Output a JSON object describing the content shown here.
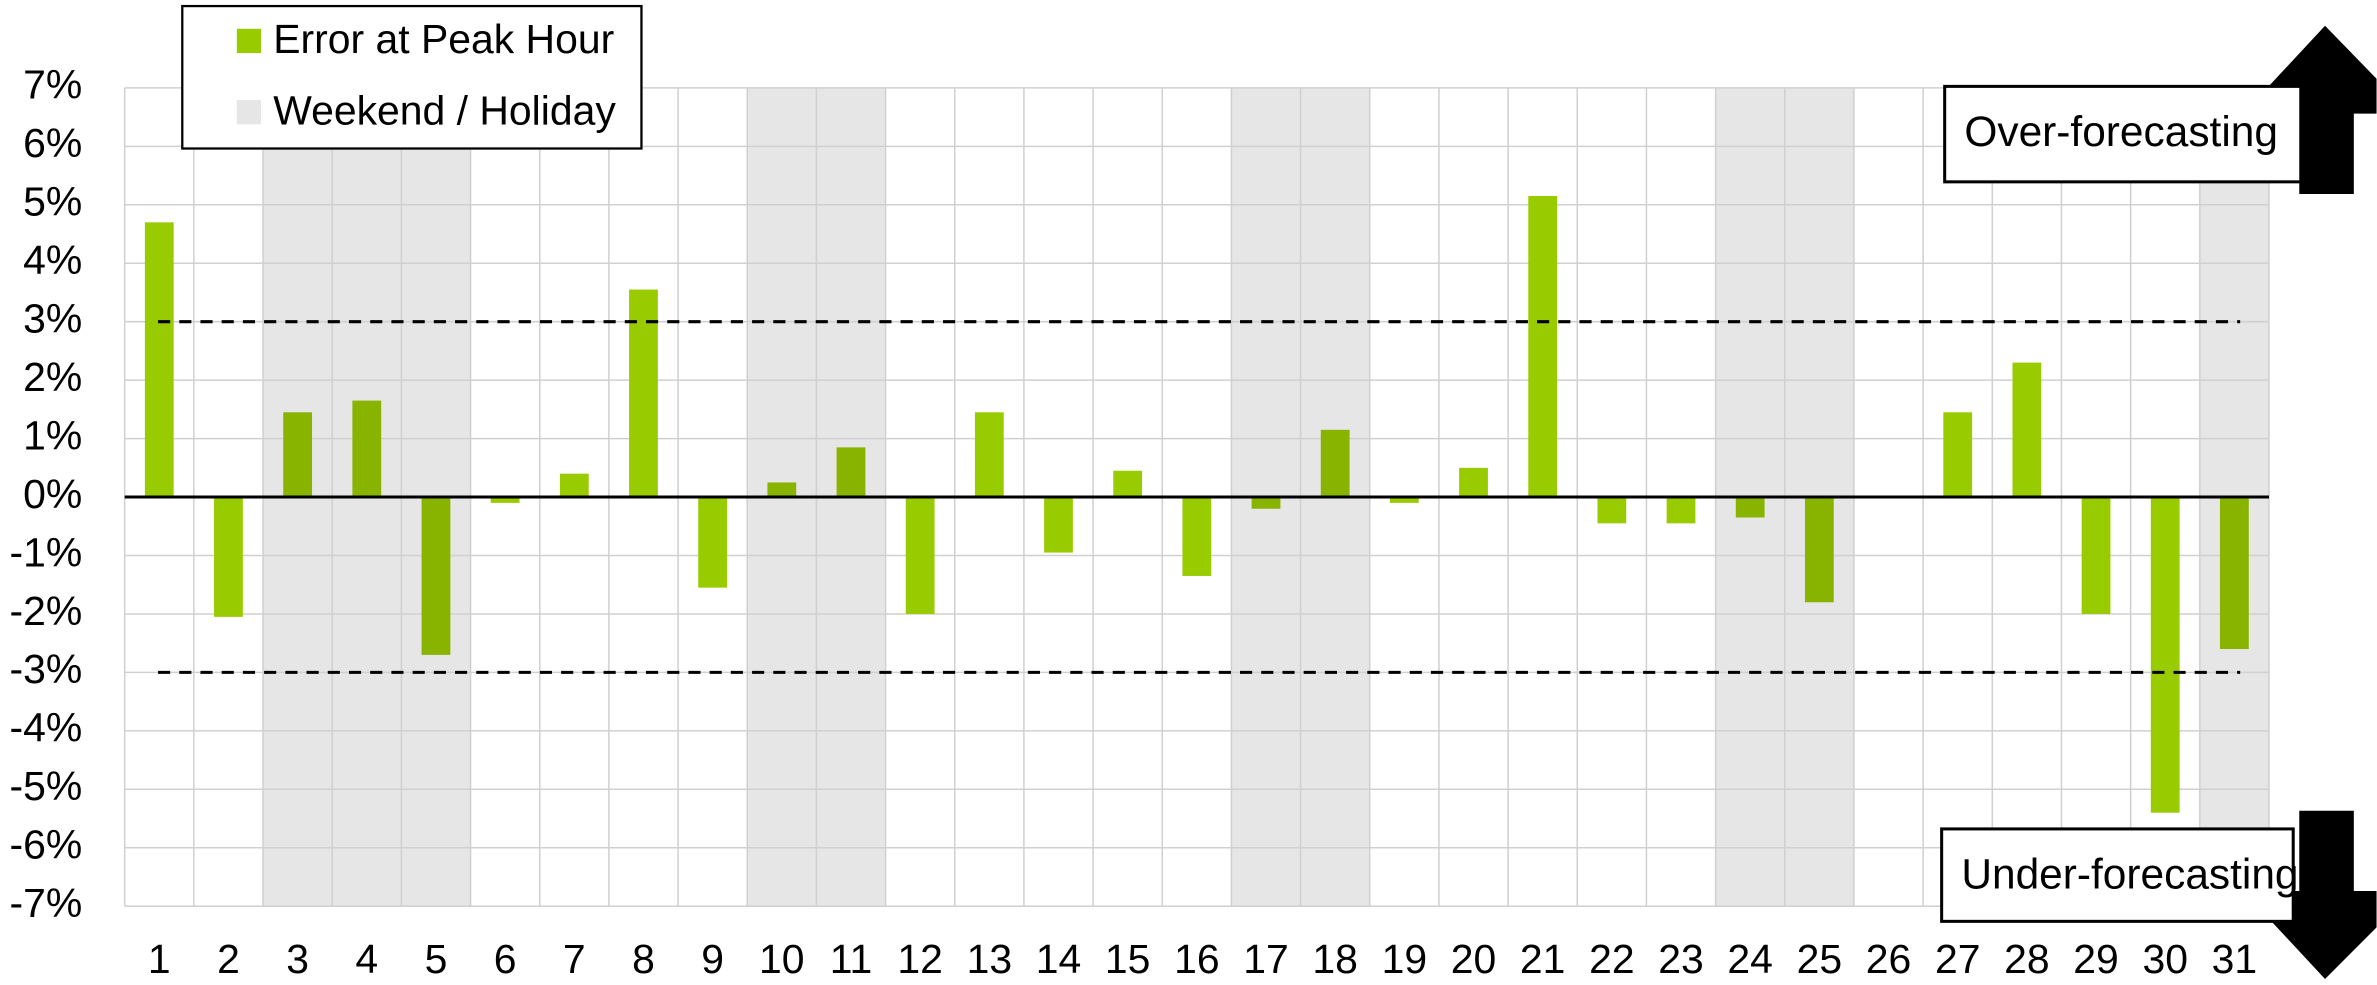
{
  "chart_data": {
    "type": "bar",
    "categories": [
      "1",
      "2",
      "3",
      "4",
      "5",
      "6",
      "7",
      "8",
      "9",
      "10",
      "11",
      "12",
      "13",
      "14",
      "15",
      "16",
      "17",
      "18",
      "19",
      "20",
      "21",
      "22",
      "23",
      "24",
      "25",
      "26",
      "27",
      "28",
      "29",
      "30",
      "31"
    ],
    "series": [
      {
        "name": "Error at Peak Hour",
        "color": "#99cc00",
        "weekend_color": "#88b400",
        "values": [
          4.7,
          -2.05,
          1.45,
          1.65,
          -2.7,
          -0.1,
          0.4,
          3.55,
          -1.55,
          0.25,
          0.85,
          -2.0,
          1.45,
          -0.95,
          0.45,
          -1.35,
          -0.2,
          1.15,
          -0.1,
          0.5,
          5.15,
          -0.45,
          -0.45,
          -0.35,
          -1.8,
          0,
          1.45,
          2.3,
          -2.0,
          -5.4,
          -2.6
        ]
      }
    ],
    "shade_label": "Weekend / Holiday",
    "shade_color": "#e6e6e6",
    "shaded_categories": [
      3,
      4,
      5,
      10,
      11,
      17,
      18,
      24,
      25,
      31
    ],
    "thresholds": [
      3,
      -3
    ],
    "annotations": [
      "Over-forecasting",
      "Under-forecasting"
    ],
    "ylim": [
      -7,
      7
    ],
    "yticks": [
      {
        "value": -7,
        "label": "-7%"
      },
      {
        "value": -6,
        "label": "-6%"
      },
      {
        "value": -5,
        "label": "-5%"
      },
      {
        "value": -4,
        "label": "-4%"
      },
      {
        "value": -3,
        "label": "-3%"
      },
      {
        "value": -2,
        "label": "-2%"
      },
      {
        "value": -1,
        "label": "-1%"
      },
      {
        "value": 0,
        "label": "0%"
      },
      {
        "value": 1,
        "label": "1%"
      },
      {
        "value": 2,
        "label": "2%"
      },
      {
        "value": 3,
        "label": "3%"
      },
      {
        "value": 4,
        "label": "4%"
      },
      {
        "value": 5,
        "label": "5%"
      },
      {
        "value": 6,
        "label": "6%"
      },
      {
        "value": 7,
        "label": "7%"
      }
    ],
    "grid": true,
    "legend": "upper left"
  }
}
